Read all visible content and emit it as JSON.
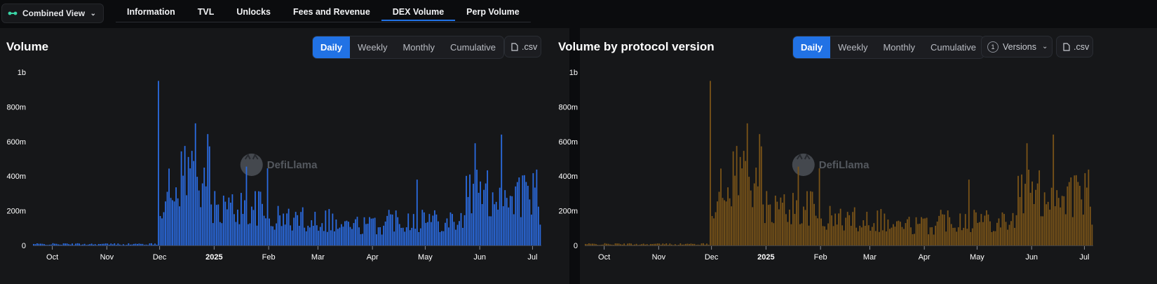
{
  "view_selector": {
    "label": "Combined View"
  },
  "tabs": [
    {
      "label": "Information",
      "active": false
    },
    {
      "label": "TVL",
      "active": false
    },
    {
      "label": "Unlocks",
      "active": false
    },
    {
      "label": "Fees and Revenue",
      "active": false
    },
    {
      "label": "DEX Volume",
      "active": true
    },
    {
      "label": "Perp Volume",
      "active": false
    }
  ],
  "colors": {
    "accent": "#2172e5",
    "volume_bar": "#2b6be0",
    "version_bar": "#7a5418"
  },
  "left_panel": {
    "title": "Volume",
    "periods": [
      "Daily",
      "Weekly",
      "Monthly",
      "Cumulative"
    ],
    "selected_period": "Daily",
    "csv_label": ".csv"
  },
  "right_panel": {
    "title": "Volume by protocol version",
    "periods": [
      "Daily",
      "Weekly",
      "Monthly",
      "Cumulative"
    ],
    "selected_period": "Daily",
    "versions_count": "1",
    "versions_label": "Versions",
    "csv_label": ".csv"
  },
  "watermark": "DefiLlama",
  "chart_data": [
    {
      "type": "bar",
      "ylim": [
        0,
        1000000000
      ],
      "y_ticks": [
        "0",
        "200m",
        "400m",
        "600m",
        "800m",
        "1b"
      ],
      "x_ticks": [
        "Oct",
        "Nov",
        "Dec",
        "2025",
        "Feb",
        "Mar",
        "Apr",
        "May",
        "Jun",
        "Jul"
      ],
      "x_range": [
        "2024-09-20",
        "2025-07-05"
      ],
      "segments": [
        {
          "from": "2024-09-20",
          "to": "2024-11-29",
          "approx_value": 8000000
        },
        {
          "from": "2024-11-30",
          "to": "2025-07-05",
          "peak_values": [
            {
              "date": "2024-11-30",
              "value": 950000000
            },
            {
              "date": "2024-12-21",
              "value": 705000000
            },
            {
              "date": "2025-06-13",
              "value": 640000000
            },
            {
              "date": "2025-05-29",
              "value": 590000000
            },
            {
              "date": "2025-01-31",
              "value": 445000000
            },
            {
              "date": "2025-01-19",
              "value": 455000000
            },
            {
              "date": "2025-04-26",
              "value": 380000000
            },
            {
              "date": "2025-07-05",
              "value": 120000000
            }
          ]
        }
      ]
    },
    {
      "type": "bar",
      "ylim": [
        0,
        1000000000
      ],
      "y_ticks": [
        "0",
        "200m",
        "400m",
        "600m",
        "800m",
        "1b"
      ],
      "x_ticks": [
        "Oct",
        "Nov",
        "Dec",
        "2025",
        "Feb",
        "Mar",
        "Apr",
        "May",
        "Jun",
        "Jul"
      ],
      "x_range": [
        "2024-09-20",
        "2025-07-05"
      ],
      "stacked_versions": 1
    }
  ]
}
